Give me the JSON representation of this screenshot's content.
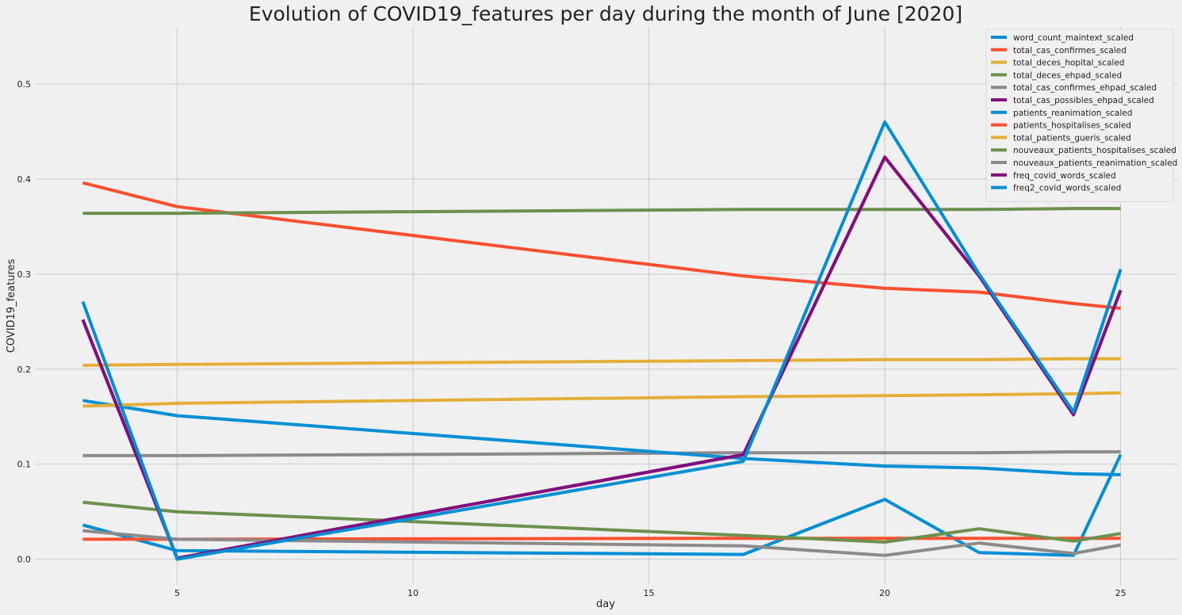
{
  "chart_data": {
    "type": "line",
    "title": "Evolution of COVID19_features per day during the month of June [2020]",
    "xlabel": "day",
    "ylabel": "COVID19_features",
    "xlim": [
      2,
      26.2
    ],
    "ylim": [
      -0.027,
      0.56
    ],
    "xticks": [
      5,
      10,
      15,
      20,
      25
    ],
    "yticks": [
      0.0,
      0.1,
      0.2,
      0.3,
      0.4,
      0.5
    ],
    "xtick_labels": [
      "5",
      "10",
      "15",
      "20",
      "25"
    ],
    "ytick_labels": [
      "0.0",
      "0.1",
      "0.2",
      "0.3",
      "0.4",
      "0.5"
    ],
    "grid": true,
    "legend_position": "top-right",
    "x": [
      3,
      5,
      17,
      20,
      22,
      24,
      25
    ],
    "series": [
      {
        "name": "word_count_maintext_scaled",
        "color": "#008fd5",
        "values": [
          0.036,
          0.009,
          0.005,
          0.063,
          0.007,
          0.004,
          0.11
        ]
      },
      {
        "name": "total_cas_confirmes_scaled",
        "color": "#fc4f30",
        "values": [
          0.396,
          0.371,
          0.298,
          0.285,
          0.281,
          0.269,
          0.264
        ]
      },
      {
        "name": "total_deces_hopital_scaled",
        "color": "#e5ae38",
        "values": [
          0.204,
          0.205,
          0.209,
          0.21,
          0.21,
          0.211,
          0.211
        ]
      },
      {
        "name": "total_deces_ehpad_scaled",
        "color": "#6d904f",
        "values": [
          0.364,
          0.364,
          0.368,
          0.368,
          0.368,
          0.369,
          0.369
        ]
      },
      {
        "name": "total_cas_confirmes_ehpad_scaled",
        "color": "#8b8b8b",
        "values": [
          0.109,
          0.109,
          0.112,
          0.112,
          0.112,
          0.113,
          0.113
        ]
      },
      {
        "name": "total_cas_possibles_ehpad_scaled",
        "color": "#810f7c",
        "values": [
          0.252,
          0.001,
          0.11,
          0.423,
          0.298,
          0.152,
          0.283
        ]
      },
      {
        "name": "patients_reanimation_scaled",
        "color": "#008fd5",
        "values": [
          0.167,
          0.151,
          0.106,
          0.098,
          0.096,
          0.09,
          0.089
        ]
      },
      {
        "name": "patients_hospitalises_scaled",
        "color": "#fc4f30",
        "values": [
          0.021,
          0.021,
          0.022,
          0.022,
          0.022,
          0.022,
          0.022
        ]
      },
      {
        "name": "total_patients_gueris_scaled",
        "color": "#e5ae38",
        "values": [
          0.161,
          0.164,
          0.171,
          0.172,
          0.173,
          0.174,
          0.175
        ]
      },
      {
        "name": "nouveaux_patients_hospitalises_scaled",
        "color": "#6d904f",
        "values": [
          0.06,
          0.05,
          0.025,
          0.018,
          0.032,
          0.019,
          0.027
        ]
      },
      {
        "name": "nouveaux_patients_reanimation_scaled",
        "color": "#8b8b8b",
        "values": [
          0.03,
          0.021,
          0.014,
          0.004,
          0.017,
          0.006,
          0.015
        ]
      },
      {
        "name": "freq_covid_words_scaled",
        "color": "#810f7c",
        "values": [
          0.252,
          0.001,
          0.11,
          0.423,
          0.298,
          0.152,
          0.283
        ]
      },
      {
        "name": "freq2_covid_words_scaled",
        "color": "#008fd5",
        "values": [
          0.271,
          0.0,
          0.103,
          0.46,
          0.3,
          0.155,
          0.305
        ]
      }
    ]
  }
}
